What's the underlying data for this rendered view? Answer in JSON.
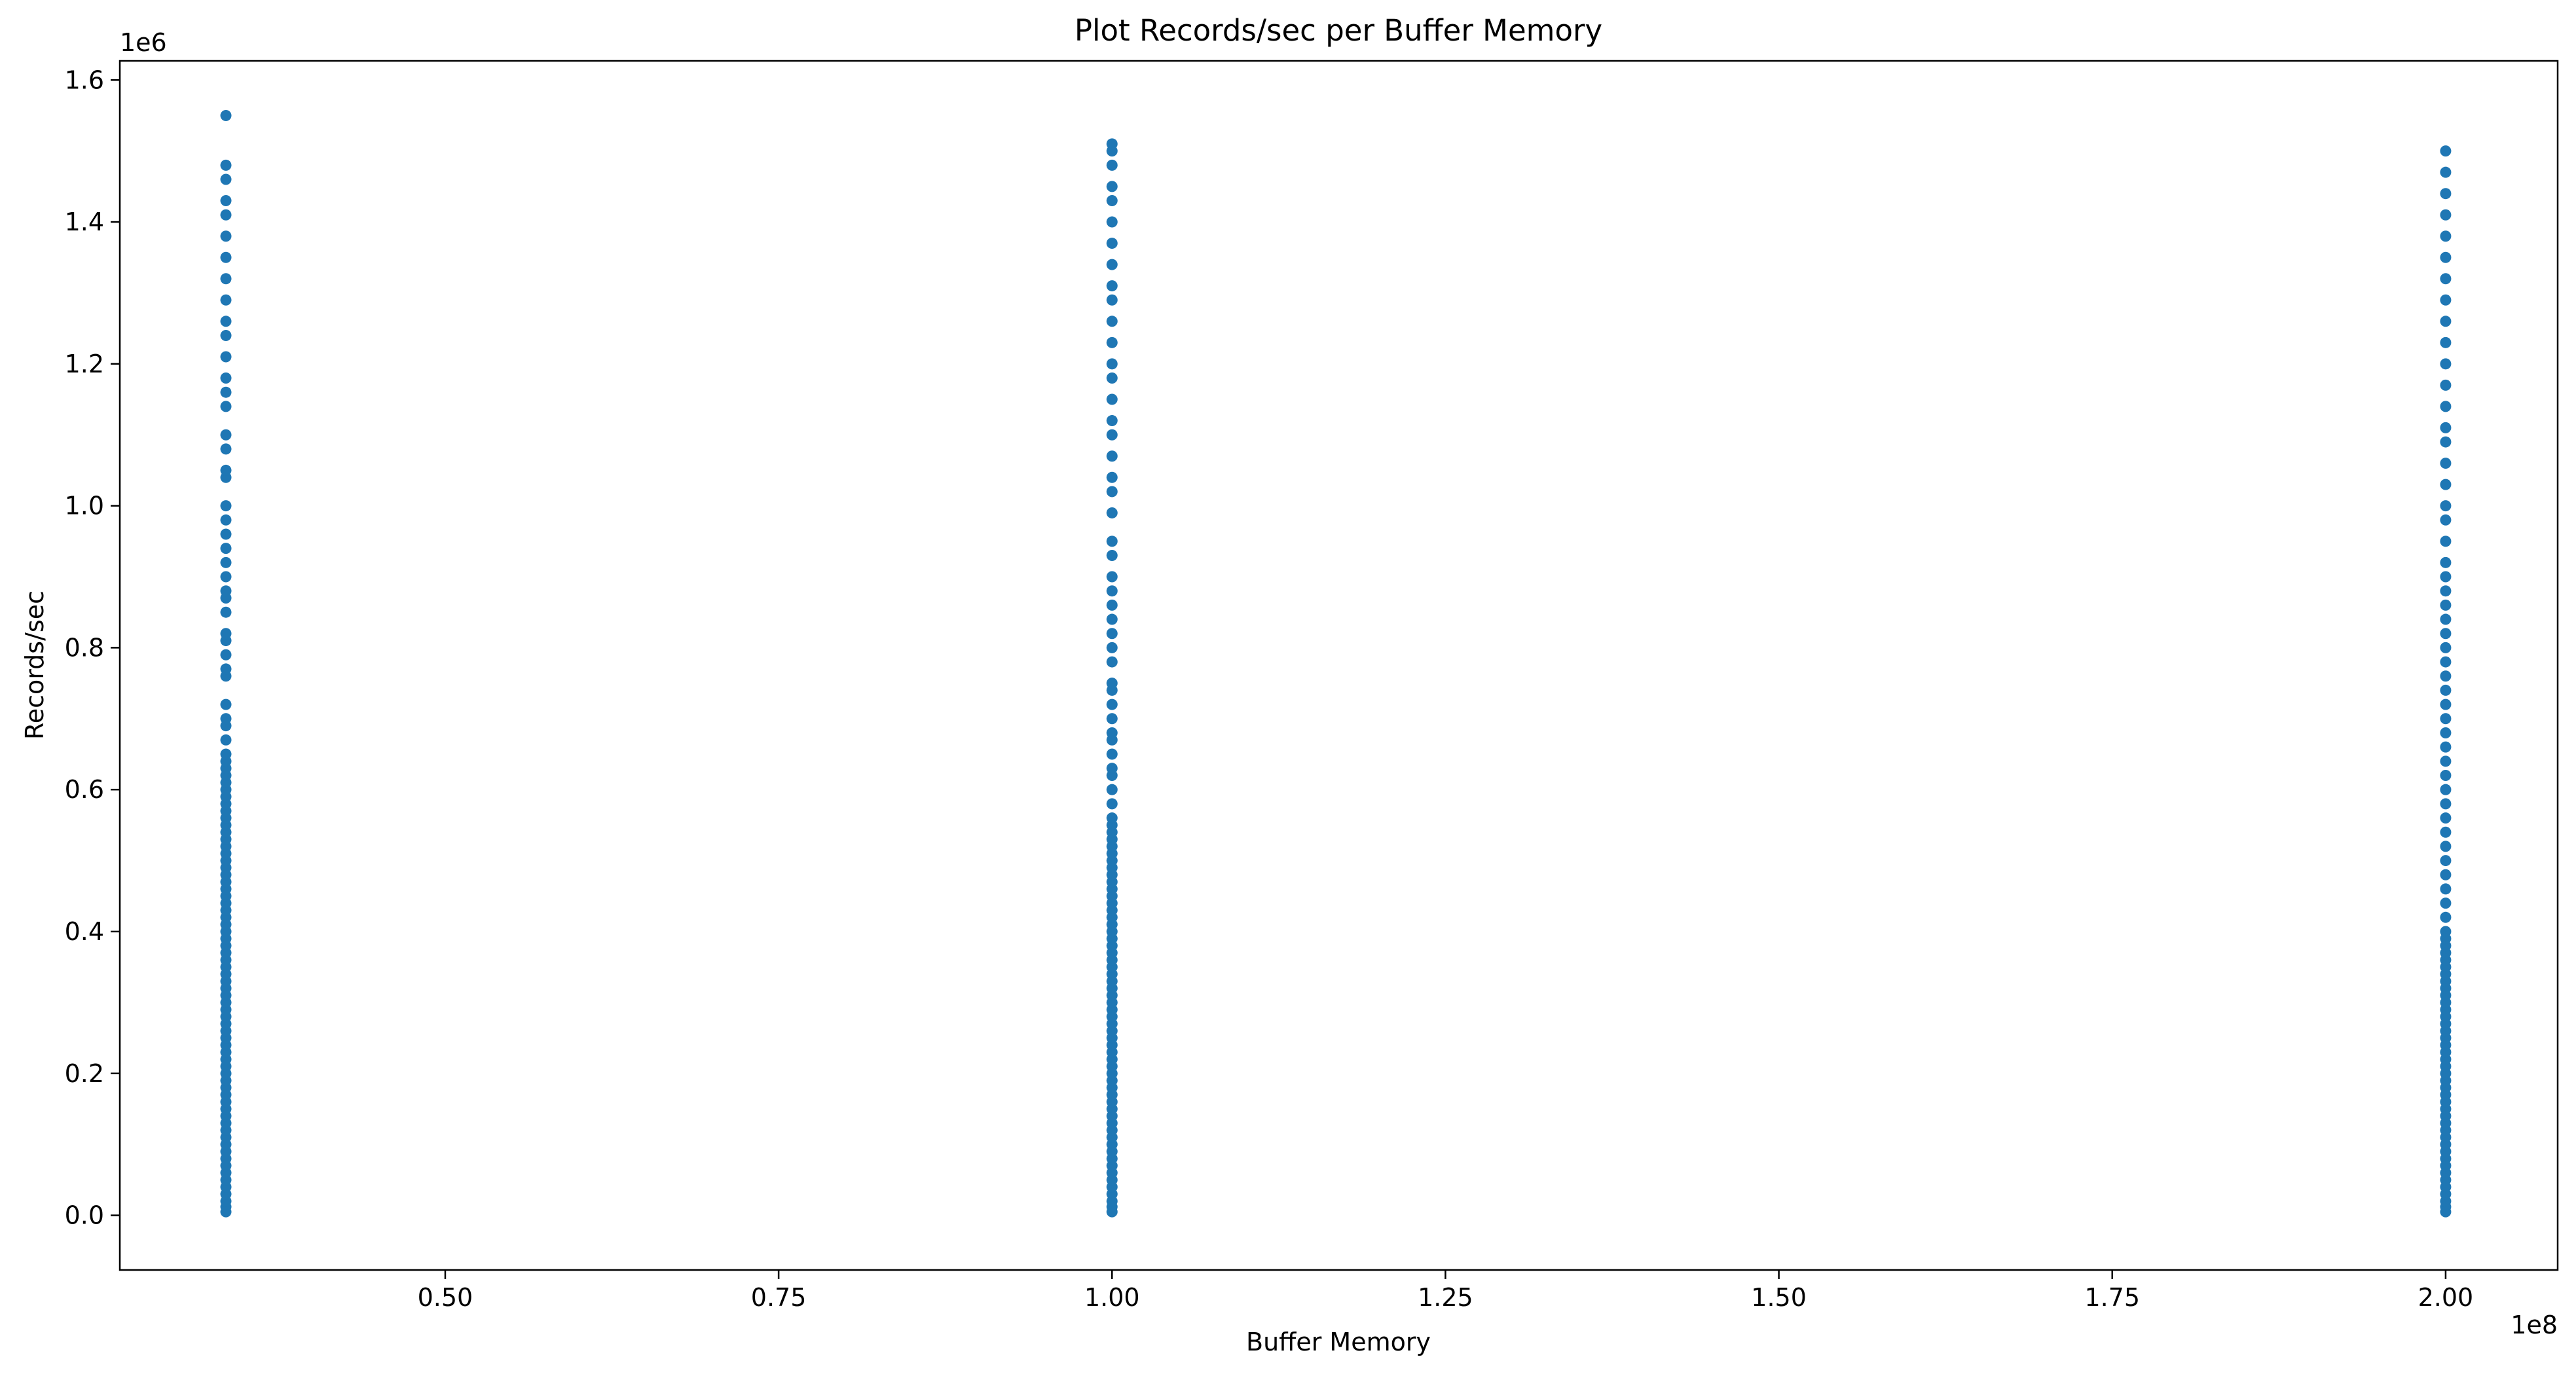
{
  "chart_data": {
    "type": "scatter",
    "title": "Plot Records/sec per Buffer Memory",
    "xlabel": "Buffer Memory",
    "ylabel": "Records/sec",
    "x_offset_text": "1e8",
    "y_offset_text": "1e6",
    "x_scale": 100000000,
    "y_scale": 1000000,
    "xlim": [
      25600000,
      208400000
    ],
    "ylim": [
      -0.077,
      1.627
    ],
    "xticks": [
      50000000,
      75000000,
      100000000,
      125000000,
      150000000,
      175000000,
      200000000
    ],
    "xtick_labels": [
      "0.50",
      "0.75",
      "1.00",
      "1.25",
      "1.50",
      "1.75",
      "2.00"
    ],
    "yticks": [
      0.0,
      0.2,
      0.4,
      0.6,
      0.8,
      1.0,
      1.2,
      1.4,
      1.6
    ],
    "ytick_labels": [
      "0.0",
      "0.2",
      "0.4",
      "0.6",
      "0.8",
      "1.0",
      "1.2",
      "1.4",
      "1.6"
    ],
    "grid": false,
    "marker_color": "#1f77b4",
    "series": [
      {
        "x": 33554432,
        "y": [
          0.005,
          0.012,
          0.02,
          0.03,
          0.04,
          0.05,
          0.06,
          0.07,
          0.08,
          0.09,
          0.1,
          0.11,
          0.12,
          0.13,
          0.14,
          0.15,
          0.16,
          0.17,
          0.18,
          0.19,
          0.2,
          0.21,
          0.22,
          0.23,
          0.24,
          0.25,
          0.26,
          0.27,
          0.28,
          0.29,
          0.3,
          0.31,
          0.32,
          0.33,
          0.34,
          0.35,
          0.36,
          0.37,
          0.38,
          0.39,
          0.4,
          0.41,
          0.42,
          0.43,
          0.44,
          0.45,
          0.46,
          0.47,
          0.48,
          0.49,
          0.5,
          0.51,
          0.52,
          0.53,
          0.54,
          0.55,
          0.56,
          0.57,
          0.58,
          0.59,
          0.6,
          0.61,
          0.62,
          0.63,
          0.64,
          0.65,
          0.67,
          0.69,
          0.7,
          0.72,
          0.76,
          0.77,
          0.79,
          0.81,
          0.82,
          0.85,
          0.87,
          0.88,
          0.9,
          0.92,
          0.94,
          0.96,
          0.98,
          1.0,
          1.04,
          1.05,
          1.08,
          1.1,
          1.14,
          1.16,
          1.18,
          1.21,
          1.24,
          1.26,
          1.29,
          1.32,
          1.35,
          1.38,
          1.41,
          1.43,
          1.46,
          1.48,
          1.55
        ]
      },
      {
        "x": 100000000,
        "y": [
          0.005,
          0.012,
          0.02,
          0.03,
          0.04,
          0.05,
          0.06,
          0.07,
          0.08,
          0.09,
          0.1,
          0.11,
          0.12,
          0.13,
          0.14,
          0.15,
          0.16,
          0.17,
          0.18,
          0.19,
          0.2,
          0.21,
          0.22,
          0.23,
          0.24,
          0.25,
          0.26,
          0.27,
          0.28,
          0.29,
          0.3,
          0.31,
          0.32,
          0.33,
          0.34,
          0.35,
          0.36,
          0.37,
          0.38,
          0.39,
          0.4,
          0.41,
          0.42,
          0.43,
          0.44,
          0.45,
          0.46,
          0.47,
          0.48,
          0.49,
          0.5,
          0.51,
          0.52,
          0.53,
          0.54,
          0.55,
          0.56,
          0.58,
          0.6,
          0.62,
          0.63,
          0.65,
          0.67,
          0.68,
          0.7,
          0.72,
          0.74,
          0.75,
          0.78,
          0.8,
          0.82,
          0.84,
          0.86,
          0.88,
          0.9,
          0.93,
          0.95,
          0.99,
          1.02,
          1.04,
          1.07,
          1.1,
          1.12,
          1.15,
          1.18,
          1.2,
          1.23,
          1.26,
          1.29,
          1.31,
          1.34,
          1.37,
          1.4,
          1.43,
          1.45,
          1.48,
          1.5,
          1.51
        ]
      },
      {
        "x": 200000000,
        "y": [
          0.005,
          0.012,
          0.02,
          0.03,
          0.04,
          0.05,
          0.06,
          0.07,
          0.08,
          0.09,
          0.1,
          0.11,
          0.12,
          0.13,
          0.14,
          0.15,
          0.16,
          0.17,
          0.18,
          0.19,
          0.2,
          0.21,
          0.22,
          0.23,
          0.24,
          0.25,
          0.26,
          0.27,
          0.28,
          0.29,
          0.3,
          0.31,
          0.32,
          0.33,
          0.34,
          0.35,
          0.36,
          0.37,
          0.38,
          0.39,
          0.4,
          0.42,
          0.44,
          0.46,
          0.48,
          0.5,
          0.52,
          0.54,
          0.56,
          0.58,
          0.6,
          0.62,
          0.64,
          0.66,
          0.68,
          0.7,
          0.72,
          0.74,
          0.76,
          0.78,
          0.8,
          0.82,
          0.84,
          0.86,
          0.88,
          0.9,
          0.92,
          0.95,
          0.98,
          1.0,
          1.03,
          1.06,
          1.09,
          1.11,
          1.14,
          1.17,
          1.2,
          1.23,
          1.26,
          1.29,
          1.32,
          1.35,
          1.38,
          1.41,
          1.44,
          1.47,
          1.5
        ]
      }
    ]
  }
}
